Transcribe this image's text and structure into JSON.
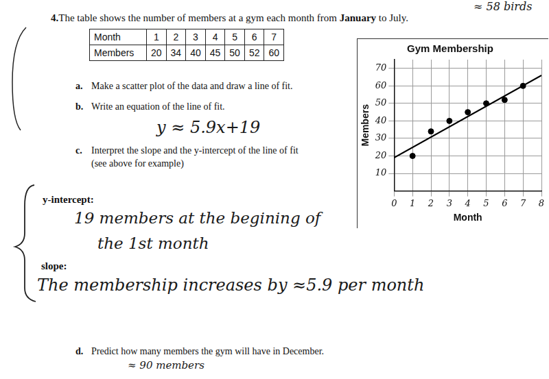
{
  "header_note": "≈ 58 birds",
  "question": {
    "number": "4.",
    "before": "The table shows the number of members at a gym each month from ",
    "bold": "January",
    "after": " to July."
  },
  "table": {
    "rows": [
      [
        "Month",
        1,
        2,
        3,
        4,
        5,
        6,
        7
      ],
      [
        "Members",
        20,
        34,
        40,
        45,
        50,
        52,
        60
      ]
    ]
  },
  "parts": [
    {
      "label": "a.",
      "text": [
        "Make a scatter plot of the data and draw a line of fit."
      ]
    },
    {
      "label": "b.",
      "text": [
        "Write an equation of the line of fit."
      ],
      "answer": [
        "y ≈ 5.9x+19"
      ]
    },
    {
      "label": "c.",
      "text": [
        "Interpret the slope and the y-intercept of the line of fit",
        "(see above for example)"
      ],
      "interpretations": [
        {
          "heading": "y-intercept:",
          "answer": [
            "19 members at the begining of",
            "the 1st month"
          ]
        },
        {
          "heading": "slope:",
          "answer": [
            "The membership increases by ≈5.9 per month"
          ]
        }
      ]
    },
    {
      "label": "d.",
      "text": [
        "Predict how many members the gym will have in December."
      ],
      "answer": [
        "≈ 90 members"
      ]
    }
  ],
  "chart_data": {
    "type": "scatter",
    "title": "Gym Membership",
    "x_label": "Month",
    "y_label": "Members",
    "xlim": [
      0,
      8
    ],
    "xticks": [
      0,
      1,
      2,
      3,
      4,
      5,
      6,
      7,
      8
    ],
    "ylim": [
      0,
      75
    ],
    "yticks": [
      10,
      20,
      30,
      40,
      50,
      60,
      70
    ],
    "grid": true,
    "series": [
      {
        "type": "scatter",
        "marker": "circle",
        "color": "#000000",
        "x": [
          1,
          2,
          3,
          4,
          5,
          6,
          7
        ],
        "values": [
          20,
          34,
          40,
          45,
          50,
          52,
          60
        ]
      },
      {
        "type": "line",
        "line_style": "solid",
        "color": "#000000",
        "x": [
          0,
          8
        ],
        "values": [
          19,
          66
        ]
      }
    ]
  }
}
